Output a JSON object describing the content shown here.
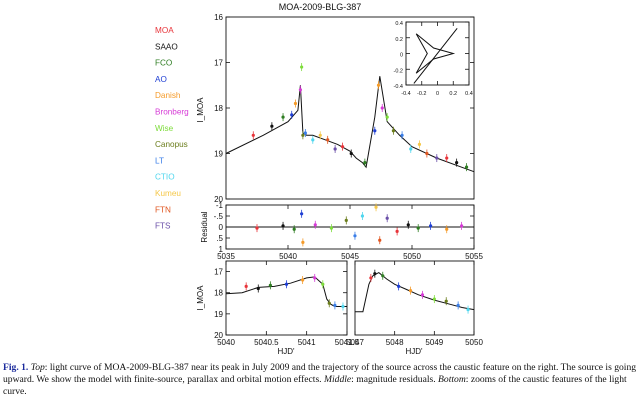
{
  "figure_title": "MOA-2009-BLG-387",
  "legend": [
    {
      "name": "MOA",
      "color": "#e8343a"
    },
    {
      "name": "SAAO",
      "color": "#111111"
    },
    {
      "name": "FCO",
      "color": "#2e7d22"
    },
    {
      "name": "AO",
      "color": "#1f3fd4"
    },
    {
      "name": "Danish",
      "color": "#f59b2a"
    },
    {
      "name": "Bronberg",
      "color": "#d63ad6"
    },
    {
      "name": "Wise",
      "color": "#7ddc3a"
    },
    {
      "name": "Canopus",
      "color": "#6b7d1c"
    },
    {
      "name": "LT",
      "color": "#3a7ee8"
    },
    {
      "name": "CTIO",
      "color": "#4fd6ee"
    },
    {
      "name": "Kumeu",
      "color": "#f5c84a"
    },
    {
      "name": "FTN",
      "color": "#e0551f"
    },
    {
      "name": "FTS",
      "color": "#6a4fa8"
    }
  ],
  "caption": {
    "label": "Fig. 1.",
    "top_word": "Top",
    "p1": ": light curve of MOA-2009-BLG-387 near its peak in July 2009 and the trajectory of the source across the caustic feature on the right. The source is going upward. We show the model with finite-source, parallax and orbital motion effects. ",
    "middle_word": "Middle",
    "p2": ": magnitude residuals. ",
    "bottom_word": "Bottom",
    "p3": ": zooms of the caustic features of the light curve."
  },
  "chart_data": [
    {
      "panel": "main",
      "type": "scatter",
      "title": "MOA-2009-BLG-387",
      "ylabel": "I_MOA",
      "xlim": [
        5035,
        5055
      ],
      "ylim": [
        20,
        16
      ],
      "yticks": [
        16,
        17,
        18,
        19,
        20
      ],
      "model": {
        "x": [
          5035,
          5038,
          5040,
          5040.8,
          5041,
          5041.2,
          5041.5,
          5042,
          5043,
          5044,
          5045,
          5045.5,
          5046,
          5046.3,
          5047,
          5047.4,
          5048,
          5049,
          5050,
          5052,
          5054,
          5055
        ],
        "y": [
          19.0,
          18.6,
          18.3,
          18.05,
          17.5,
          18.55,
          18.6,
          18.6,
          18.7,
          18.8,
          18.95,
          19.1,
          19.2,
          19.3,
          18.2,
          17.3,
          18.3,
          18.6,
          18.85,
          19.1,
          19.3,
          19.4
        ]
      },
      "points": {
        "x": [
          5037.2,
          5038.7,
          5039.6,
          5040.3,
          5040.6,
          5041.0,
          5041.1,
          5041.2,
          5041.4,
          5042.0,
          5042.6,
          5043.2,
          5043.8,
          5044.4,
          5045.1,
          5046.2,
          5047.0,
          5047.3,
          5047.6,
          5048.0,
          5048.5,
          5049.2,
          5049.9,
          5050.6,
          5051.2,
          5052.0,
          5052.8,
          5053.6,
          5054.4
        ],
        "y": [
          18.6,
          18.4,
          18.2,
          18.15,
          17.9,
          17.6,
          17.1,
          18.6,
          18.55,
          18.7,
          18.6,
          18.7,
          18.9,
          18.85,
          19.0,
          19.2,
          18.5,
          17.5,
          18.0,
          18.2,
          18.5,
          18.6,
          18.9,
          18.8,
          19.0,
          19.1,
          19.1,
          19.2,
          19.3
        ]
      }
    },
    {
      "panel": "inset",
      "type": "line",
      "description": "source trajectory across caustic",
      "xlim": [
        -0.4,
        0.4
      ],
      "ylim": [
        -0.4,
        0.4
      ],
      "xticks": [
        -0.4,
        -0.2,
        0,
        0.2,
        0.4
      ],
      "yticks": [
        -0.4,
        -0.2,
        0,
        0.2,
        0.4
      ],
      "xtick_labels": [
        "-0.4",
        "-0.2",
        "0",
        "0.2",
        "0.4"
      ],
      "ytick_labels": [
        "-0.4",
        "-0.2",
        "0",
        "0.2",
        "0.4"
      ],
      "caustic": {
        "x": [
          -0.27,
          -0.05,
          0.2,
          -0.05,
          -0.27,
          -0.13,
          -0.27
        ],
        "y": [
          0.25,
          0.07,
          0,
          -0.07,
          -0.25,
          0,
          0.25
        ]
      },
      "trajectory": {
        "x": [
          -0.3,
          0.25
        ],
        "y": [
          -0.38,
          0.32
        ]
      }
    },
    {
      "panel": "residual",
      "type": "scatter",
      "ylabel": "Residual",
      "xlim": [
        5035,
        5055
      ],
      "ylim": [
        1,
        -1
      ],
      "yticks": [
        -1,
        -0.5,
        0,
        0.5,
        1
      ],
      "ytick_labels": [
        "-1",
        "-.5",
        "0",
        ".5",
        "1"
      ],
      "xticks": [
        5035,
        5040,
        5045,
        5050,
        5055
      ],
      "points": {
        "x": [
          5037.5,
          5039.6,
          5040.5,
          5041.1,
          5041.2,
          5042.2,
          5043.5,
          5044.7,
          5045.4,
          5046.0,
          5047.1,
          5047.4,
          5048.0,
          5048.8,
          5049.7,
          5050.5,
          5051.5,
          5052.8,
          5054.0
        ],
        "y": [
          0.05,
          -0.05,
          0.1,
          -0.6,
          0.7,
          -0.1,
          0.05,
          -0.3,
          0.4,
          -0.5,
          -0.9,
          0.6,
          -0.4,
          0.2,
          -0.1,
          0.05,
          -0.05,
          0.1,
          -0.05
        ]
      }
    },
    {
      "panel": "zoom1",
      "type": "scatter",
      "ylabel": "I_MOA",
      "xlabel": "HJD'",
      "xlim": [
        5040,
        5041.5
      ],
      "ylim": [
        20,
        16.5
      ],
      "yticks": [
        17,
        18,
        19,
        20
      ],
      "xticks": [
        5040,
        5040.5,
        5041,
        5041.5
      ],
      "xtick_labels": [
        "5040",
        "5040.5",
        "5041",
        "5041.5"
      ],
      "model": {
        "x": [
          5040,
          5040.2,
          5040.4,
          5040.6,
          5040.8,
          5041.0,
          5041.1,
          5041.2,
          5041.25,
          5041.3,
          5041.35,
          5041.5
        ],
        "y": [
          18.05,
          18.0,
          17.75,
          17.7,
          17.55,
          17.3,
          17.25,
          17.6,
          18.3,
          18.55,
          18.65,
          18.65
        ]
      },
      "points": {
        "x": [
          5040.25,
          5040.4,
          5040.55,
          5040.75,
          5040.95,
          5041.1,
          5041.2,
          5041.28,
          5041.35,
          5041.45
        ],
        "y": [
          17.7,
          17.8,
          17.65,
          17.6,
          17.4,
          17.3,
          17.6,
          18.5,
          18.6,
          18.65
        ]
      }
    },
    {
      "panel": "zoom2",
      "type": "scatter",
      "xlabel": "HJD'",
      "xlim": [
        5047,
        5050
      ],
      "ylim": [
        20,
        16.5
      ],
      "yticks": [
        17,
        18,
        19,
        20
      ],
      "xticks": [
        5047,
        5048,
        5049,
        5050
      ],
      "xtick_labels": [
        "5047",
        "5048",
        "5049",
        "5050"
      ],
      "model": {
        "x": [
          5047,
          5047.2,
          5047.35,
          5047.45,
          5047.6,
          5047.8,
          5048,
          5048.3,
          5048.6,
          5049,
          5049.4,
          5049.7,
          5050
        ],
        "y": [
          18.9,
          18.9,
          17.6,
          17.2,
          17.05,
          17.35,
          17.6,
          17.85,
          18.1,
          18.35,
          18.55,
          18.7,
          18.8
        ]
      },
      "points": {
        "x": [
          5047.4,
          5047.5,
          5047.7,
          5048.1,
          5048.4,
          5048.7,
          5049.0,
          5049.3,
          5049.6,
          5049.85
        ],
        "y": [
          17.3,
          17.1,
          17.2,
          17.7,
          17.9,
          18.1,
          18.3,
          18.4,
          18.6,
          18.8
        ]
      }
    }
  ]
}
